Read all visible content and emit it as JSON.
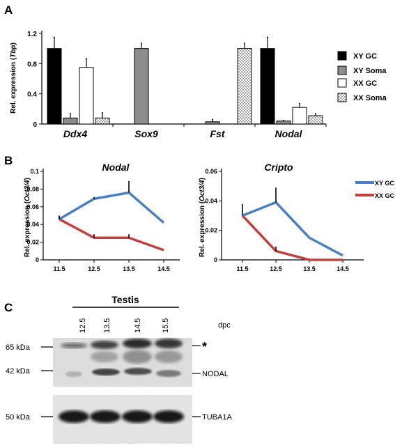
{
  "panels": {
    "a": "A",
    "b": "B",
    "c": "C"
  },
  "chart_data": [
    {
      "type": "bar",
      "panel": "A",
      "categories": [
        "Ddx4",
        "Sox9",
        "Fst",
        "Nodal"
      ],
      "ylabel_prefix": "Rel. expression (",
      "ylabel_italic": "Tbp",
      "ylabel_suffix": ")",
      "ylim": [
        0,
        1.2
      ],
      "yticks": [
        "0",
        "0.4",
        "0.8",
        "1.2"
      ],
      "legend_position": "right",
      "series": [
        {
          "name": "XY GC",
          "values": [
            1.0,
            0.0,
            0.0,
            1.0
          ],
          "errors": [
            0.15,
            0.0,
            0.0,
            0.15
          ]
        },
        {
          "name": "XY Soma",
          "values": [
            0.08,
            1.0,
            0.03,
            0.04
          ],
          "errors": [
            0.06,
            0.07,
            0.03,
            0.01
          ]
        },
        {
          "name": "XX GC",
          "values": [
            0.75,
            0.0,
            0.0,
            0.22
          ],
          "errors": [
            0.12,
            0.0,
            0.0,
            0.05
          ]
        },
        {
          "name": "XX Soma",
          "values": [
            0.08,
            0.0,
            1.0,
            0.11
          ],
          "errors": [
            0.07,
            0.0,
            0.07,
            0.03
          ]
        }
      ],
      "colors": {
        "XY GC": "#000000",
        "XY Soma": "#8c8c8c",
        "XX GC": "#ffffff",
        "XX Soma": "dotted"
      }
    },
    {
      "type": "line",
      "panel": "B",
      "title": "Nodal",
      "x": [
        "11.5",
        "12.5",
        "13.5",
        "14.5"
      ],
      "ylabel_prefix": "Rel. expression (",
      "ylabel_italic": "Oct3/4",
      "ylabel_suffix": ")",
      "ylim": [
        0,
        0.1
      ],
      "yticks": [
        "0",
        "0.02",
        "0.04",
        "0.06",
        "0.08",
        "0.1"
      ],
      "series": [
        {
          "name": "XY GC",
          "values": [
            0.046,
            0.069,
            0.076,
            0.042
          ],
          "errors": [
            0.004,
            0.002,
            0.013,
            0.0
          ],
          "color": "#4a7fc1"
        },
        {
          "name": "XX GC",
          "values": [
            0.046,
            0.025,
            0.025,
            0.011
          ],
          "errors": [
            0.004,
            0.004,
            0.004,
            0.0
          ],
          "color": "#c0413d"
        }
      ]
    },
    {
      "type": "line",
      "panel": "B",
      "title": "Cripto",
      "x": [
        "11.5",
        "12.5",
        "13.5",
        "14.5"
      ],
      "ylabel_prefix": "Rel. expression (",
      "ylabel_italic": "Oct3/4",
      "ylabel_suffix": ")",
      "ylim": [
        0,
        0.06
      ],
      "yticks": [
        "0",
        "0.02",
        "0.04",
        "0.06"
      ],
      "legend_position": "right",
      "series": [
        {
          "name": "XY GC",
          "values": [
            0.03,
            0.039,
            0.015,
            0.003
          ],
          "errors": [
            0.008,
            0.01,
            0.0,
            0.0
          ],
          "color": "#4a7fc1"
        },
        {
          "name": "XX GC",
          "values": [
            0.03,
            0.006,
            0.0,
            0.0
          ],
          "errors": [
            0.0,
            0.003,
            0.0,
            0.0
          ],
          "color": "#c0413d"
        }
      ]
    }
  ],
  "blot": {
    "group_label": "Testis",
    "lanes": [
      "12.5",
      "13.5",
      "14.5",
      "15.5"
    ],
    "unit_label": "dpc",
    "markers": [
      "65 kDa",
      "42 kDa",
      "50 kDa"
    ],
    "band_labels": {
      "star": "*",
      "nodal": "NODAL",
      "tuba": "TUBA1A"
    }
  }
}
